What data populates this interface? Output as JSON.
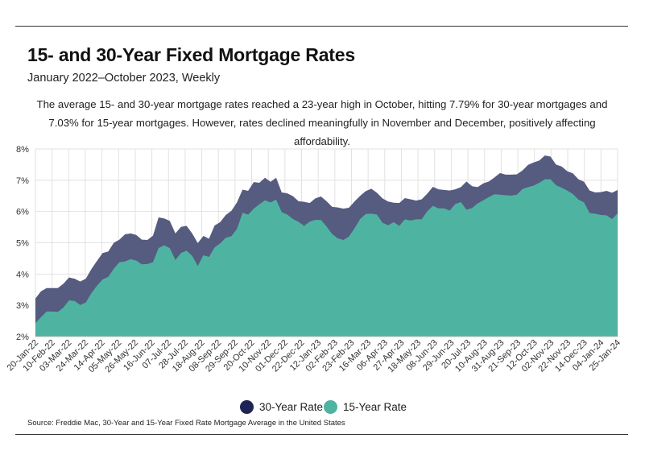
{
  "header": {
    "title": "15- and 30-Year Fixed Mortgage Rates",
    "subtitle": "January 2022–October 2023, Weekly",
    "description": "The average 15- and 30-year mortgage rates reached a 23-year high in October, hitting 7.79% for 30-year mortgages and 7.03% for 15-year mortgages. However, rates declined meaningfully in November and December, positively affecting affordability."
  },
  "legend": {
    "items": [
      {
        "label": "30-Year Rate",
        "color": "#1f2456"
      },
      {
        "label": "15-Year Rate",
        "color": "#4fb3a1"
      }
    ]
  },
  "footer": {
    "source": "Source:  Freddie Mac, 30-Year  and 15-Year Fixed Rate Mortgage Average in the United States"
  },
  "chart_data": {
    "type": "area",
    "title": "15- and 30-Year Fixed Mortgage Rates",
    "subtitle": "January 2022–October 2023, Weekly",
    "xlabel": "",
    "ylabel": "",
    "ylim": [
      2,
      8
    ],
    "yticks": [
      "2%",
      "3%",
      "4%",
      "5%",
      "6%",
      "7%",
      "8%"
    ],
    "xtick_labels": [
      "20-Jan-22",
      "10-Feb-22",
      "03-Mar-22",
      "24-Mar-22",
      "14-Apr-22",
      "05-May-22",
      "26-May-22",
      "16-Jun-22",
      "07-Jul-22",
      "28-Jul-22",
      "18-Aug-22",
      "08-Sep-22",
      "29-Sep-22",
      "20-Oct-22",
      "10-Nov-22",
      "01-Dec-22",
      "22-Dec-22",
      "12-Jan-23",
      "02-Feb-23",
      "23-Feb-23",
      "16-Mar-23",
      "06-Apr-23",
      "27-Apr-23",
      "18-May-23",
      "08-Jun-23",
      "29-Jun-23",
      "20-Jul-23",
      "10-Aug-23",
      "31-Aug-23",
      "21-Sep-23",
      "12-Oct-23",
      "02-Nov-23",
      "22-Nov-23",
      "14-Dec-23",
      "04-Jan-24",
      "25-Jan-24"
    ],
    "grid": true,
    "legend_position": "bottom",
    "series": [
      {
        "name": "30-Year Rate",
        "color": "#565b80",
        "values": [
          3.22,
          3.45,
          3.55,
          3.55,
          3.55,
          3.69,
          3.89,
          3.85,
          3.76,
          3.85,
          4.16,
          4.42,
          4.67,
          4.72,
          5.0,
          5.1,
          5.27,
          5.3,
          5.25,
          5.1,
          5.09,
          5.23,
          5.81,
          5.78,
          5.7,
          5.3,
          5.51,
          5.54,
          5.3,
          4.99,
          5.22,
          5.13,
          5.55,
          5.66,
          5.89,
          6.02,
          6.29,
          6.7,
          6.66,
          6.94,
          6.92,
          7.08,
          6.95,
          7.08,
          6.61,
          6.58,
          6.49,
          6.33,
          6.31,
          6.27,
          6.42,
          6.48,
          6.33,
          6.15,
          6.13,
          6.09,
          6.12,
          6.32,
          6.5,
          6.65,
          6.73,
          6.6,
          6.42,
          6.32,
          6.28,
          6.27,
          6.43,
          6.39,
          6.35,
          6.39,
          6.57,
          6.79,
          6.71,
          6.69,
          6.67,
          6.71,
          6.78,
          6.96,
          6.81,
          6.78,
          6.9,
          6.96,
          7.09,
          7.23,
          7.18,
          7.18,
          7.19,
          7.31,
          7.49,
          7.57,
          7.63,
          7.79,
          7.76,
          7.5,
          7.44,
          7.29,
          7.22,
          7.03,
          6.95,
          6.67,
          6.61,
          6.62,
          6.66,
          6.6,
          6.69
        ]
      },
      {
        "name": "15-Year Rate",
        "color": "#4fb3a1",
        "values": [
          2.43,
          2.62,
          2.8,
          2.8,
          2.79,
          2.93,
          3.16,
          3.14,
          3.01,
          3.09,
          3.39,
          3.63,
          3.83,
          3.91,
          4.17,
          4.38,
          4.4,
          4.48,
          4.43,
          4.31,
          4.32,
          4.38,
          4.83,
          4.92,
          4.83,
          4.45,
          4.67,
          4.75,
          4.58,
          4.26,
          4.6,
          4.55,
          4.85,
          4.98,
          5.16,
          5.21,
          5.44,
          5.96,
          5.9,
          6.09,
          6.23,
          6.36,
          6.29,
          6.38,
          5.98,
          5.9,
          5.76,
          5.67,
          5.54,
          5.68,
          5.73,
          5.73,
          5.52,
          5.28,
          5.14,
          5.09,
          5.2,
          5.46,
          5.76,
          5.92,
          5.93,
          5.9,
          5.64,
          5.56,
          5.66,
          5.54,
          5.75,
          5.71,
          5.75,
          5.75,
          6.01,
          6.18,
          6.1,
          6.1,
          6.03,
          6.24,
          6.3,
          6.06,
          6.11,
          6.26,
          6.36,
          6.46,
          6.55,
          6.54,
          6.52,
          6.51,
          6.54,
          6.72,
          6.78,
          6.83,
          6.92,
          7.03,
          7.03,
          6.84,
          6.76,
          6.67,
          6.56,
          6.38,
          6.29,
          5.95,
          5.93,
          5.89,
          5.88,
          5.76,
          5.94
        ]
      }
    ]
  }
}
